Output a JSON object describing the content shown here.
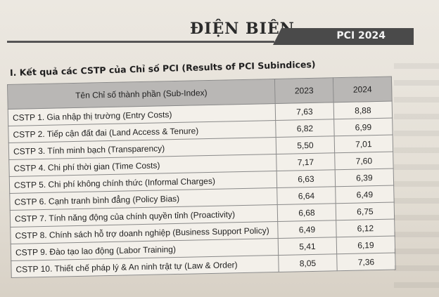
{
  "header": {
    "title": "ĐIỆN BIÊN",
    "badge": "PCI 2024"
  },
  "section": {
    "title": "I. Kết quả các CSTP của Chỉ số PCI (Results of PCI Subindices)"
  },
  "table": {
    "headers": [
      "Tên Chỉ số thành phần (Sub-Index)",
      "2023",
      "2024"
    ],
    "rows": [
      {
        "name": "CSTP 1. Gia nhập thị trường (Entry Costs)",
        "v2023": "7,63",
        "v2024": "8,88"
      },
      {
        "name": "CSTP 2. Tiếp cận đất đai (Land Access & Tenure)",
        "v2023": "6,82",
        "v2024": "6,99"
      },
      {
        "name": "CSTP 3. Tính minh bạch (Transparency)",
        "v2023": "5,50",
        "v2024": "7,01"
      },
      {
        "name": "CSTP 4. Chi phí thời gian (Time Costs)",
        "v2023": "7,17",
        "v2024": "7,60"
      },
      {
        "name": "CSTP 5. Chi phí không chính thức (Informal Charges)",
        "v2023": "6,63",
        "v2024": "6,39"
      },
      {
        "name": "CSTP 6. Cạnh tranh bình đẳng (Policy Bias)",
        "v2023": "6,64",
        "v2024": "6,49"
      },
      {
        "name": "CSTP 7. Tính năng động của chính quyền tỉnh (Proactivity)",
        "v2023": "6,68",
        "v2024": "6,75"
      },
      {
        "name": "CSTP 8. Chính sách hỗ trợ doanh nghiệp (Business Support Policy)",
        "v2023": "6,49",
        "v2024": "6,12"
      },
      {
        "name": "CSTP 9. Đào tạo lao động (Labor Training)",
        "v2023": "5,41",
        "v2024": "6,19"
      },
      {
        "name": "CSTP 10. Thiết chế pháp lý & An ninh trật tự (Law & Order)",
        "v2023": "8,05",
        "v2024": "7,36"
      }
    ]
  }
}
